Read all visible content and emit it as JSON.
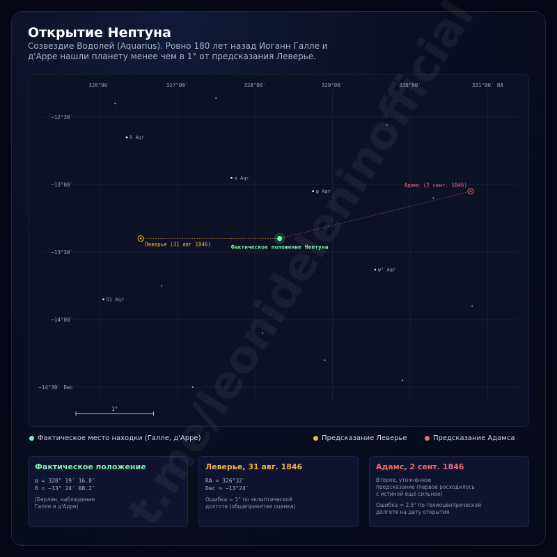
{
  "header": {
    "title": "Открытие Нептуна",
    "subtitle": "Созвездие Водолей (Aquarius). Ровно 180 лет назад Иоганн Галле и д'Арре нашли планету менее чем в 1° от предсказания Леверье."
  },
  "chart_data": {
    "type": "scatter",
    "x_ticks": [
      {
        "value": 326.0,
        "label": "326°00′"
      },
      {
        "value": 327.0,
        "label": "327°00′"
      },
      {
        "value": 328.0,
        "label": "328°00′"
      },
      {
        "value": 329.0,
        "label": "329°00′"
      },
      {
        "value": 330.0,
        "label": "330°00′"
      },
      {
        "value": 331.0,
        "label": "331°00′ RA"
      }
    ],
    "y_ticks": [
      {
        "value": -12.5,
        "label": "−12°30′"
      },
      {
        "value": -13.0,
        "label": "−13°00′"
      },
      {
        "value": -13.5,
        "label": "−13°30′"
      },
      {
        "value": -14.0,
        "label": "−14°00′"
      },
      {
        "value": -14.5,
        "label": "−14°30′ Dec"
      }
    ],
    "xlim": [
      325.6,
      331.6
    ],
    "ylim": [
      -14.5,
      -12.3
    ],
    "x_reversed": false,
    "grid": true,
    "stars": [
      {
        "ra": 326.2,
        "dec": -12.4,
        "label": ""
      },
      {
        "ra": 327.5,
        "dec": -12.36,
        "label": ""
      },
      {
        "ra": 326.35,
        "dec": -12.65,
        "label": "λ Aqr"
      },
      {
        "ra": 329.7,
        "dec": -12.56,
        "label": ""
      },
      {
        "ra": 327.7,
        "dec": -12.95,
        "label": "σ Aqr"
      },
      {
        "ra": 328.75,
        "dec": -13.05,
        "label": "φ Aqr"
      },
      {
        "ra": 330.3,
        "dec": -13.1,
        "label": ""
      },
      {
        "ra": 329.55,
        "dec": -13.63,
        "label": "ψ¹ Aqr"
      },
      {
        "ra": 326.8,
        "dec": -13.75,
        "label": ""
      },
      {
        "ra": 326.05,
        "dec": -13.85,
        "label": "51 Aqr"
      },
      {
        "ra": 330.8,
        "dec": -13.9,
        "label": ""
      },
      {
        "ra": 328.1,
        "dec": -14.1,
        "label": ""
      },
      {
        "ra": 328.9,
        "dec": -14.3,
        "label": ""
      },
      {
        "ra": 329.9,
        "dec": -14.45,
        "label": ""
      },
      {
        "ra": 327.2,
        "dec": -14.5,
        "label": ""
      }
    ],
    "neptune": {
      "ra": 328.32,
      "dec": -13.4,
      "label": "Фактическое положение Нептуна"
    },
    "leverrier": {
      "ra": 326.53,
      "dec": -13.4,
      "label": "Леверье (31 авг 1846)"
    },
    "adams": {
      "ra": 330.78,
      "dec": -13.05,
      "label": "Адамс (2 сент. 1846)"
    },
    "scale_bar": {
      "length_deg": 1.0,
      "label": "1°"
    },
    "colors": {
      "neptune": "#7ef0a8",
      "leverrier": "#f2b347",
      "adams": "#ef6a6a",
      "star": "#e8ecf7",
      "grid": "#1b2344",
      "tick": "#9aa3bd"
    }
  },
  "legend": {
    "actual": "Фактическое место находки (Галле, д'Арре)",
    "leverrier": "Предсказание Леверье",
    "adams": "Предсказание Адамса"
  },
  "cards": {
    "actual": {
      "title": "Фактическое положение",
      "line1": "α = 328° 19′ 16.0″",
      "line2": "δ = −13° 24′ 08.2″",
      "note": "(Берлин, наблюдение\nГалле и д'Арре)"
    },
    "leverrier": {
      "title": "Леверье, 31 авг. 1846",
      "line1": "RA ≈ 326°32′",
      "line2": "Dec ≈ −13°24′",
      "note": "Ошибка ≈ 1° по эклиптической\nдолготе (общепринятая оценка)"
    },
    "adams": {
      "title": "Адамс, 2 сент. 1846",
      "note1": "Второе, уточнённое\nпредсказание (первое расходилось\nс истиной ещё сильнее)",
      "note2": "Ошибка ≈ 2.5° по гелиоцентрической\nдолготе на дату открытия"
    }
  },
  "watermark": "t.me/leonideleninofficial"
}
